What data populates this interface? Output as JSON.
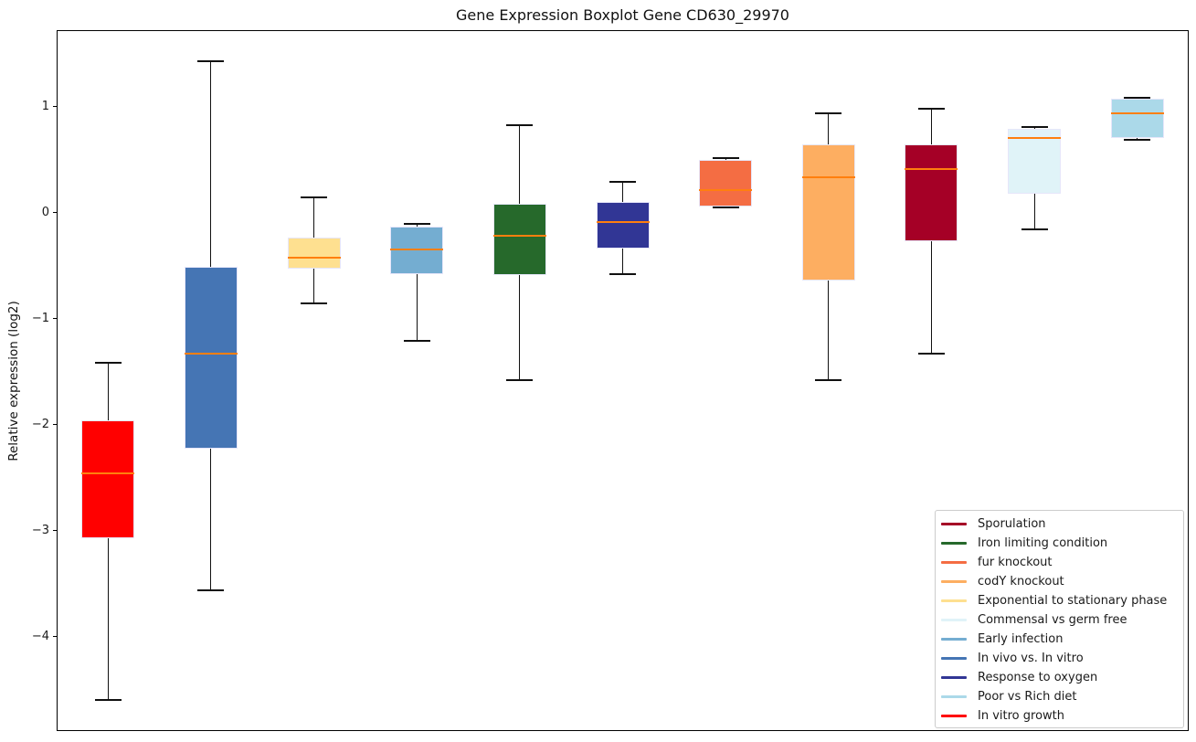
{
  "title": "Gene Expression Boxplot Gene CD630_29970",
  "ylabel": "Relative expression (log2)",
  "chart_data": {
    "type": "boxplot",
    "title": "Gene Expression Boxplot Gene CD630_29970",
    "ylabel": "Relative expression (log2)",
    "xlabel": "",
    "ylim": [
      -4.89,
      1.72
    ],
    "grid": false,
    "x_tick_labels": [],
    "yticks": [
      {
        "v": 1,
        "label": "1"
      },
      {
        "v": 0,
        "label": "0"
      },
      {
        "v": -1,
        "label": "−1"
      },
      {
        "v": -2,
        "label": "−2"
      },
      {
        "v": -3,
        "label": "−3"
      },
      {
        "v": -4,
        "label": "−4"
      }
    ],
    "median_color": "#ff7f0e",
    "box_edge_color": "#e6e6fa",
    "whisker_color": "#101010",
    "series": [
      {
        "name": "In vitro growth",
        "color": "#ff0000",
        "whislo": -4.6,
        "q1": -3.07,
        "med": -2.46,
        "q3": -1.96,
        "whishi": -1.42
      },
      {
        "name": "In vivo vs. In vitro",
        "color": "#4575b4",
        "whislo": -3.56,
        "q1": -2.23,
        "med": -1.33,
        "q3": -0.51,
        "whishi": 1.43
      },
      {
        "name": "Exponential to stationary phase",
        "color": "#fee090",
        "whislo": -0.86,
        "q1": -0.53,
        "med": -0.43,
        "q3": -0.24,
        "whishi": 0.14
      },
      {
        "name": "Early infection",
        "color": "#74add1",
        "whislo": -1.21,
        "q1": -0.58,
        "med": -0.35,
        "q3": -0.13,
        "whishi": -0.11
      },
      {
        "name": "Iron limiting condition",
        "color": "#26692b",
        "whislo": -1.58,
        "q1": -0.59,
        "med": -0.22,
        "q3": 0.08,
        "whishi": 0.82
      },
      {
        "name": "Response to oxygen",
        "color": "#313695",
        "whislo": -0.58,
        "q1": -0.34,
        "med": -0.09,
        "q3": 0.1,
        "whishi": 0.29
      },
      {
        "name": "fur knockout",
        "color": "#f46d43",
        "whislo": 0.05,
        "q1": 0.06,
        "med": 0.21,
        "q3": 0.5,
        "whishi": 0.51
      },
      {
        "name": "codY knockout",
        "color": "#fdae61",
        "whislo": -1.58,
        "q1": -0.64,
        "med": 0.33,
        "q3": 0.64,
        "whishi": 0.94
      },
      {
        "name": "Sporulation",
        "color": "#a50026",
        "whislo": -1.33,
        "q1": -0.27,
        "med": 0.41,
        "q3": 0.64,
        "whishi": 0.98
      },
      {
        "name": "Commensal vs germ free",
        "color": "#e0f3f8",
        "whislo": -0.16,
        "q1": 0.18,
        "med": 0.7,
        "q3": 0.79,
        "whishi": 0.81
      },
      {
        "name": "Poor vs Rich diet",
        "color": "#abd9e9",
        "whislo": 0.69,
        "q1": 0.7,
        "med": 0.94,
        "q3": 1.07,
        "whishi": 1.08
      }
    ],
    "legend": {
      "position": "lower right",
      "entries": [
        {
          "label": "Sporulation",
          "color": "#a50026"
        },
        {
          "label": "Iron limiting condition",
          "color": "#26692b"
        },
        {
          "label": "fur knockout",
          "color": "#f46d43"
        },
        {
          "label": "codY knockout",
          "color": "#fdae61"
        },
        {
          "label": "Exponential to stationary phase",
          "color": "#fee090"
        },
        {
          "label": "Commensal vs germ free",
          "color": "#e0f3f8"
        },
        {
          "label": "Early infection",
          "color": "#74add1"
        },
        {
          "label": "In vivo vs. In vitro",
          "color": "#4575b4"
        },
        {
          "label": "Response to oxygen",
          "color": "#313695"
        },
        {
          "label": "Poor vs Rich diet",
          "color": "#abd9e9"
        },
        {
          "label": "In vitro growth",
          "color": "#ff0000"
        }
      ]
    }
  }
}
